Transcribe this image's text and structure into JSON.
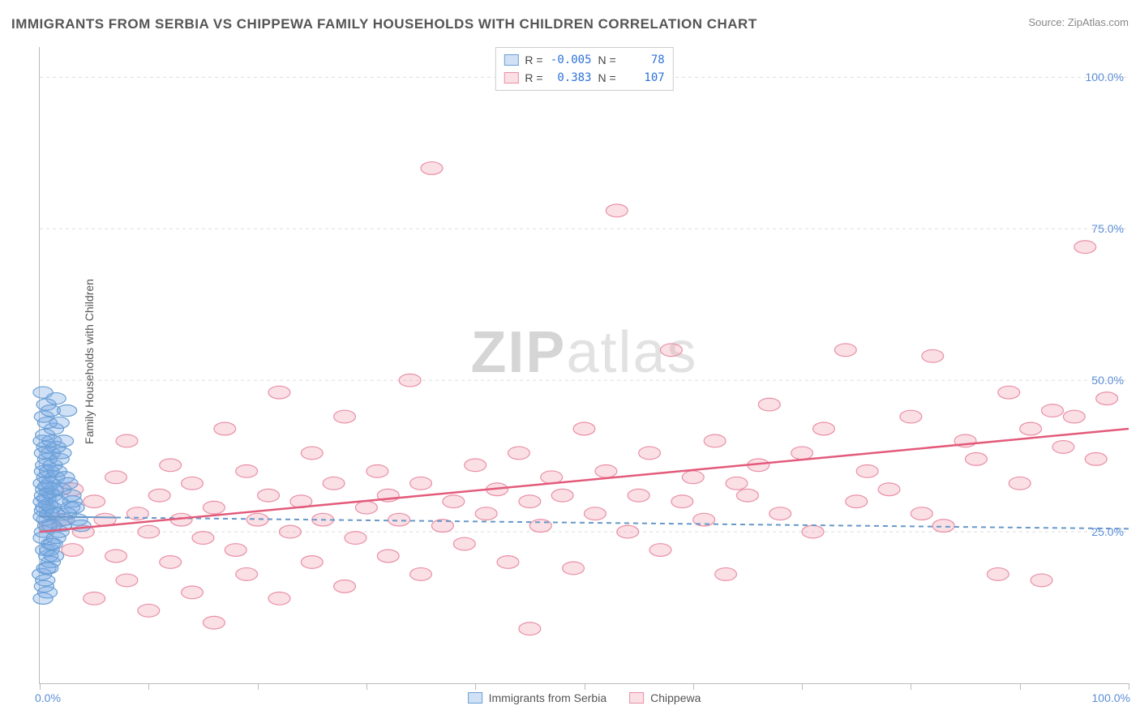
{
  "header": {
    "title": "IMMIGRANTS FROM SERBIA VS CHIPPEWA FAMILY HOUSEHOLDS WITH CHILDREN CORRELATION CHART",
    "source_prefix": "Source: ",
    "source_name": "ZipAtlas.com"
  },
  "watermark": {
    "part1": "ZIP",
    "part2": "atlas"
  },
  "axes": {
    "ylabel": "Family Households with Children",
    "xmin_label": "0.0%",
    "xmax_label": "100.0%",
    "xlim": [
      0,
      100
    ],
    "ylim": [
      0,
      105
    ],
    "yticks": [
      25,
      50,
      75,
      100
    ],
    "ytick_labels": [
      "25.0%",
      "50.0%",
      "75.0%",
      "100.0%"
    ],
    "xticks": [
      0,
      10,
      20,
      30,
      40,
      50,
      60,
      70,
      80,
      90,
      100
    ],
    "grid_color": "#dddddd",
    "axis_color": "#bbbbbb",
    "tick_label_color": "#5b8dd6",
    "axis_label_color": "#555555",
    "label_fontsize": 14
  },
  "series": [
    {
      "key": "serbia",
      "name": "Immigrants from Serbia",
      "marker_fill": "rgba(120,170,230,0.35)",
      "marker_stroke": "#6a9fd4",
      "marker_radius": 9,
      "R": "-0.005",
      "N": "78",
      "trend": {
        "y_at_x0": 27.5,
        "y_at_x100": 25.5,
        "color": "#6898c8",
        "width": 2,
        "dash": "6,5",
        "solid_until_x": 7
      },
      "points": [
        [
          0.3,
          14
        ],
        [
          0.4,
          16
        ],
        [
          0.2,
          18
        ],
        [
          0.6,
          19
        ],
        [
          0.8,
          21
        ],
        [
          0.5,
          22
        ],
        [
          1.0,
          23
        ],
        [
          0.3,
          24
        ],
        [
          0.4,
          25
        ],
        [
          0.7,
          26
        ],
        [
          0.6,
          27
        ],
        [
          0.3,
          27.5
        ],
        [
          0.9,
          28
        ],
        [
          0.4,
          28.5
        ],
        [
          0.5,
          29
        ],
        [
          1.1,
          29
        ],
        [
          0.8,
          29.5
        ],
        [
          0.3,
          30
        ],
        [
          0.6,
          30.5
        ],
        [
          1.2,
          31
        ],
        [
          0.4,
          31
        ],
        [
          0.9,
          31.5
        ],
        [
          0.5,
          32
        ],
        [
          1.3,
          32
        ],
        [
          0.7,
          32.5
        ],
        [
          0.3,
          33
        ],
        [
          1.0,
          33
        ],
        [
          0.6,
          34
        ],
        [
          1.4,
          34
        ],
        [
          0.4,
          35
        ],
        [
          0.9,
          35
        ],
        [
          1.6,
          35
        ],
        [
          0.5,
          36
        ],
        [
          1.2,
          36
        ],
        [
          0.7,
          37
        ],
        [
          1.8,
          37
        ],
        [
          0.4,
          38
        ],
        [
          1.0,
          38
        ],
        [
          2.0,
          38
        ],
        [
          0.6,
          39
        ],
        [
          1.5,
          39
        ],
        [
          0.3,
          40
        ],
        [
          1.1,
          40
        ],
        [
          2.2,
          40
        ],
        [
          0.5,
          41
        ],
        [
          1.3,
          42
        ],
        [
          0.7,
          43
        ],
        [
          1.8,
          43
        ],
        [
          0.4,
          44
        ],
        [
          1.0,
          45
        ],
        [
          2.5,
          45
        ],
        [
          0.6,
          46
        ],
        [
          1.5,
          47
        ],
        [
          0.3,
          48
        ],
        [
          0.9,
          22
        ],
        [
          1.2,
          23
        ],
        [
          1.5,
          24
        ],
        [
          1.8,
          25
        ],
        [
          2.0,
          26
        ],
        [
          2.3,
          27
        ],
        [
          2.5,
          28
        ],
        [
          2.8,
          29
        ],
        [
          3.0,
          30
        ],
        [
          1.0,
          20
        ],
        [
          1.3,
          21
        ],
        [
          0.8,
          19
        ],
        [
          0.5,
          17
        ],
        [
          0.7,
          15
        ],
        [
          1.1,
          26
        ],
        [
          1.4,
          28
        ],
        [
          1.7,
          30
        ],
        [
          2.0,
          32
        ],
        [
          2.3,
          34
        ],
        [
          2.6,
          33
        ],
        [
          2.9,
          31
        ],
        [
          3.2,
          29
        ],
        [
          3.5,
          27
        ],
        [
          3.8,
          26
        ]
      ]
    },
    {
      "key": "chippewa",
      "name": "Chippewa",
      "marker_fill": "rgba(240,150,170,0.30)",
      "marker_stroke": "#e98fa6",
      "marker_radius": 10,
      "R": "0.383",
      "N": "107",
      "trend": {
        "y_at_x0": 25,
        "y_at_x100": 42,
        "color": "#e35a7a",
        "width": 2.5,
        "dash": null,
        "solid_until_x": 100
      },
      "points": [
        [
          1,
          26
        ],
        [
          2,
          27
        ],
        [
          3,
          22
        ],
        [
          3,
          32
        ],
        [
          4,
          25
        ],
        [
          5,
          30
        ],
        [
          5,
          14
        ],
        [
          6,
          27
        ],
        [
          7,
          21
        ],
        [
          7,
          34
        ],
        [
          8,
          17
        ],
        [
          8,
          40
        ],
        [
          9,
          28
        ],
        [
          10,
          25
        ],
        [
          10,
          12
        ],
        [
          11,
          31
        ],
        [
          12,
          20
        ],
        [
          12,
          36
        ],
        [
          13,
          27
        ],
        [
          14,
          15
        ],
        [
          14,
          33
        ],
        [
          15,
          24
        ],
        [
          16,
          29
        ],
        [
          16,
          10
        ],
        [
          17,
          42
        ],
        [
          18,
          22
        ],
        [
          19,
          35
        ],
        [
          19,
          18
        ],
        [
          20,
          27
        ],
        [
          21,
          31
        ],
        [
          22,
          14
        ],
        [
          22,
          48
        ],
        [
          23,
          25
        ],
        [
          24,
          30
        ],
        [
          25,
          20
        ],
        [
          25,
          38
        ],
        [
          26,
          27
        ],
        [
          27,
          33
        ],
        [
          28,
          16
        ],
        [
          28,
          44
        ],
        [
          29,
          24
        ],
        [
          30,
          29
        ],
        [
          31,
          35
        ],
        [
          32,
          21
        ],
        [
          32,
          31
        ],
        [
          33,
          27
        ],
        [
          34,
          50
        ],
        [
          35,
          18
        ],
        [
          35,
          33
        ],
        [
          36,
          85
        ],
        [
          37,
          26
        ],
        [
          38,
          30
        ],
        [
          39,
          23
        ],
        [
          40,
          36
        ],
        [
          41,
          28
        ],
        [
          42,
          32
        ],
        [
          43,
          20
        ],
        [
          44,
          38
        ],
        [
          45,
          9
        ],
        [
          45,
          30
        ],
        [
          46,
          26
        ],
        [
          47,
          34
        ],
        [
          48,
          31
        ],
        [
          49,
          19
        ],
        [
          50,
          42
        ],
        [
          51,
          28
        ],
        [
          52,
          35
        ],
        [
          53,
          78
        ],
        [
          54,
          25
        ],
        [
          55,
          31
        ],
        [
          56,
          38
        ],
        [
          57,
          22
        ],
        [
          58,
          55
        ],
        [
          59,
          30
        ],
        [
          60,
          34
        ],
        [
          61,
          27
        ],
        [
          62,
          40
        ],
        [
          63,
          18
        ],
        [
          64,
          33
        ],
        [
          65,
          31
        ],
        [
          66,
          36
        ],
        [
          67,
          46
        ],
        [
          68,
          28
        ],
        [
          70,
          38
        ],
        [
          71,
          25
        ],
        [
          72,
          42
        ],
        [
          74,
          55
        ],
        [
          75,
          30
        ],
        [
          76,
          35
        ],
        [
          78,
          32
        ],
        [
          80,
          44
        ],
        [
          81,
          28
        ],
        [
          82,
          54
        ],
        [
          83,
          26
        ],
        [
          85,
          40
        ],
        [
          86,
          37
        ],
        [
          88,
          18
        ],
        [
          89,
          48
        ],
        [
          90,
          33
        ],
        [
          91,
          42
        ],
        [
          92,
          17
        ],
        [
          93,
          45
        ],
        [
          94,
          39
        ],
        [
          95,
          44
        ],
        [
          96,
          72
        ],
        [
          97,
          37
        ],
        [
          98,
          47
        ]
      ]
    }
  ],
  "legend": {
    "stats_box": {
      "R_label": "R =",
      "N_label": "N ="
    }
  }
}
